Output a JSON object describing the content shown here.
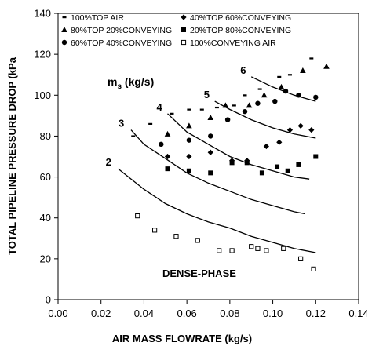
{
  "chart_data": {
    "type": "scatter",
    "xlabel": "AIR MASS FLOWRATE (kg/s)",
    "ylabel": "TOTAL PIPELINE PRESSURE DROP (kPa",
    "xlim": [
      0,
      0.14
    ],
    "ylim": [
      0,
      140
    ],
    "xticks": [
      "0.00",
      "0.02",
      "0.04",
      "0.06",
      "0.08",
      "0.10",
      "0.12",
      "0.14"
    ],
    "yticks": [
      "0",
      "20",
      "40",
      "60",
      "80",
      "100",
      "120",
      "140"
    ],
    "legend_position": "top",
    "series": [
      {
        "name": "100%TOP AIR",
        "marker": "dash",
        "points": [
          [
            0.035,
            80
          ],
          [
            0.043,
            86
          ],
          [
            0.053,
            91
          ],
          [
            0.061,
            93
          ],
          [
            0.067,
            93
          ],
          [
            0.074,
            94
          ],
          [
            0.082,
            95
          ],
          [
            0.087,
            100
          ],
          [
            0.094,
            103
          ],
          [
            0.103,
            109
          ],
          [
            0.108,
            110
          ],
          [
            0.118,
            118
          ]
        ]
      },
      {
        "name": "40%TOP 60%CONVEYING",
        "marker": "diamond",
        "points": [
          [
            0.051,
            70
          ],
          [
            0.061,
            70
          ],
          [
            0.071,
            72
          ],
          [
            0.081,
            68
          ],
          [
            0.088,
            68
          ],
          [
            0.097,
            75
          ],
          [
            0.103,
            77
          ],
          [
            0.108,
            83
          ],
          [
            0.113,
            85
          ],
          [
            0.118,
            83
          ]
        ]
      },
      {
        "name": "80%TOP 20%CONVEYING",
        "marker": "triangle",
        "points": [
          [
            0.051,
            81
          ],
          [
            0.061,
            85
          ],
          [
            0.071,
            89
          ],
          [
            0.078,
            95
          ],
          [
            0.089,
            95
          ],
          [
            0.096,
            100
          ],
          [
            0.104,
            104
          ],
          [
            0.114,
            112
          ],
          [
            0.125,
            114
          ]
        ]
      },
      {
        "name": "20%TOP 80%CONVEYING",
        "marker": "square",
        "points": [
          [
            0.051,
            64
          ],
          [
            0.061,
            63
          ],
          [
            0.071,
            62
          ],
          [
            0.081,
            67
          ],
          [
            0.088,
            67
          ],
          [
            0.095,
            62
          ],
          [
            0.102,
            65
          ],
          [
            0.107,
            63
          ],
          [
            0.112,
            66
          ],
          [
            0.12,
            70
          ]
        ]
      },
      {
        "name": "60%TOP 40%CONVEYING",
        "marker": "circle",
        "points": [
          [
            0.048,
            76
          ],
          [
            0.061,
            78
          ],
          [
            0.071,
            80
          ],
          [
            0.079,
            88
          ],
          [
            0.087,
            92
          ],
          [
            0.093,
            96
          ],
          [
            0.101,
            97
          ],
          [
            0.106,
            102
          ],
          [
            0.112,
            100
          ],
          [
            0.12,
            99
          ]
        ]
      },
      {
        "name": "100%CONVEYING AIR",
        "marker": "open-square",
        "points": [
          [
            0.037,
            41
          ],
          [
            0.045,
            34
          ],
          [
            0.055,
            31
          ],
          [
            0.065,
            29
          ],
          [
            0.075,
            24
          ],
          [
            0.081,
            24
          ],
          [
            0.09,
            26
          ],
          [
            0.093,
            25
          ],
          [
            0.097,
            24
          ],
          [
            0.105,
            25
          ],
          [
            0.113,
            20
          ],
          [
            0.119,
            15
          ]
        ]
      }
    ],
    "curves": [
      {
        "label": "2",
        "points": [
          [
            0.028,
            64
          ],
          [
            0.04,
            54
          ],
          [
            0.05,
            47
          ],
          [
            0.06,
            42
          ],
          [
            0.07,
            38
          ],
          [
            0.08,
            35
          ],
          [
            0.09,
            31
          ],
          [
            0.1,
            28
          ],
          [
            0.11,
            25
          ],
          [
            0.12,
            23
          ]
        ]
      },
      {
        "label": "3",
        "points": [
          [
            0.034,
            83
          ],
          [
            0.04,
            76
          ],
          [
            0.05,
            69
          ],
          [
            0.06,
            62
          ],
          [
            0.07,
            57
          ],
          [
            0.08,
            53
          ],
          [
            0.09,
            49
          ],
          [
            0.1,
            46
          ],
          [
            0.11,
            43
          ],
          [
            0.115,
            42
          ]
        ]
      },
      {
        "label": "4",
        "points": [
          [
            0.051,
            91
          ],
          [
            0.06,
            82
          ],
          [
            0.07,
            76
          ],
          [
            0.08,
            70
          ],
          [
            0.09,
            66
          ],
          [
            0.1,
            63
          ],
          [
            0.11,
            60
          ],
          [
            0.117,
            59
          ]
        ]
      },
      {
        "label": "5",
        "points": [
          [
            0.073,
            97
          ],
          [
            0.08,
            93
          ],
          [
            0.09,
            88
          ],
          [
            0.1,
            84
          ],
          [
            0.11,
            81
          ],
          [
            0.12,
            79
          ]
        ]
      },
      {
        "label": "6",
        "points": [
          [
            0.09,
            109
          ],
          [
            0.1,
            104
          ],
          [
            0.11,
            100
          ],
          [
            0.12,
            97
          ]
        ]
      }
    ],
    "curve_label_heading": "m",
    "curve_label_subscript": "s",
    "curve_label_units": " (kg/s)",
    "annotation": "DENSE-PHASE"
  }
}
